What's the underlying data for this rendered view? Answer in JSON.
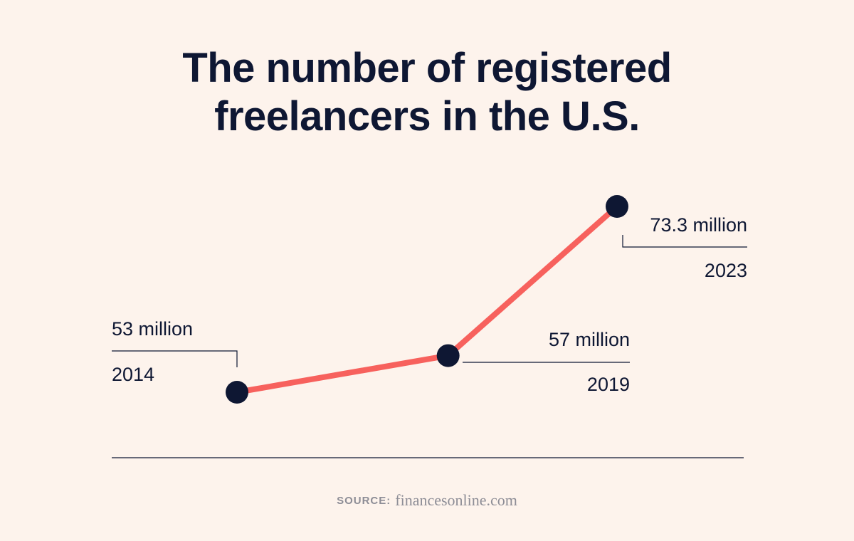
{
  "title": {
    "line1": "The number of registered",
    "line2": "freelancers in the U.S."
  },
  "source": {
    "label": "SOURCE:",
    "site": "financesonline.com"
  },
  "colors": {
    "background": "#fdf3ec",
    "text": "#0e1733",
    "line": "#f7615d",
    "marker": "#0e1733",
    "rule": "#0e1733",
    "source": "#8d8d96"
  },
  "chart_data": {
    "type": "line",
    "title": "The number of registered freelancers in the U.S.",
    "x": [
      2014,
      2019,
      2023
    ],
    "x_labels": [
      "2014",
      "2019",
      "2023"
    ],
    "series": [
      {
        "values": [
          53,
          57,
          73.3
        ],
        "value_labels": [
          "53 million",
          "57 million",
          "73.3 million"
        ]
      }
    ],
    "xlabel": "",
    "ylabel": "",
    "ylim": [
      50,
      76
    ],
    "grid": false,
    "legend": "none"
  }
}
